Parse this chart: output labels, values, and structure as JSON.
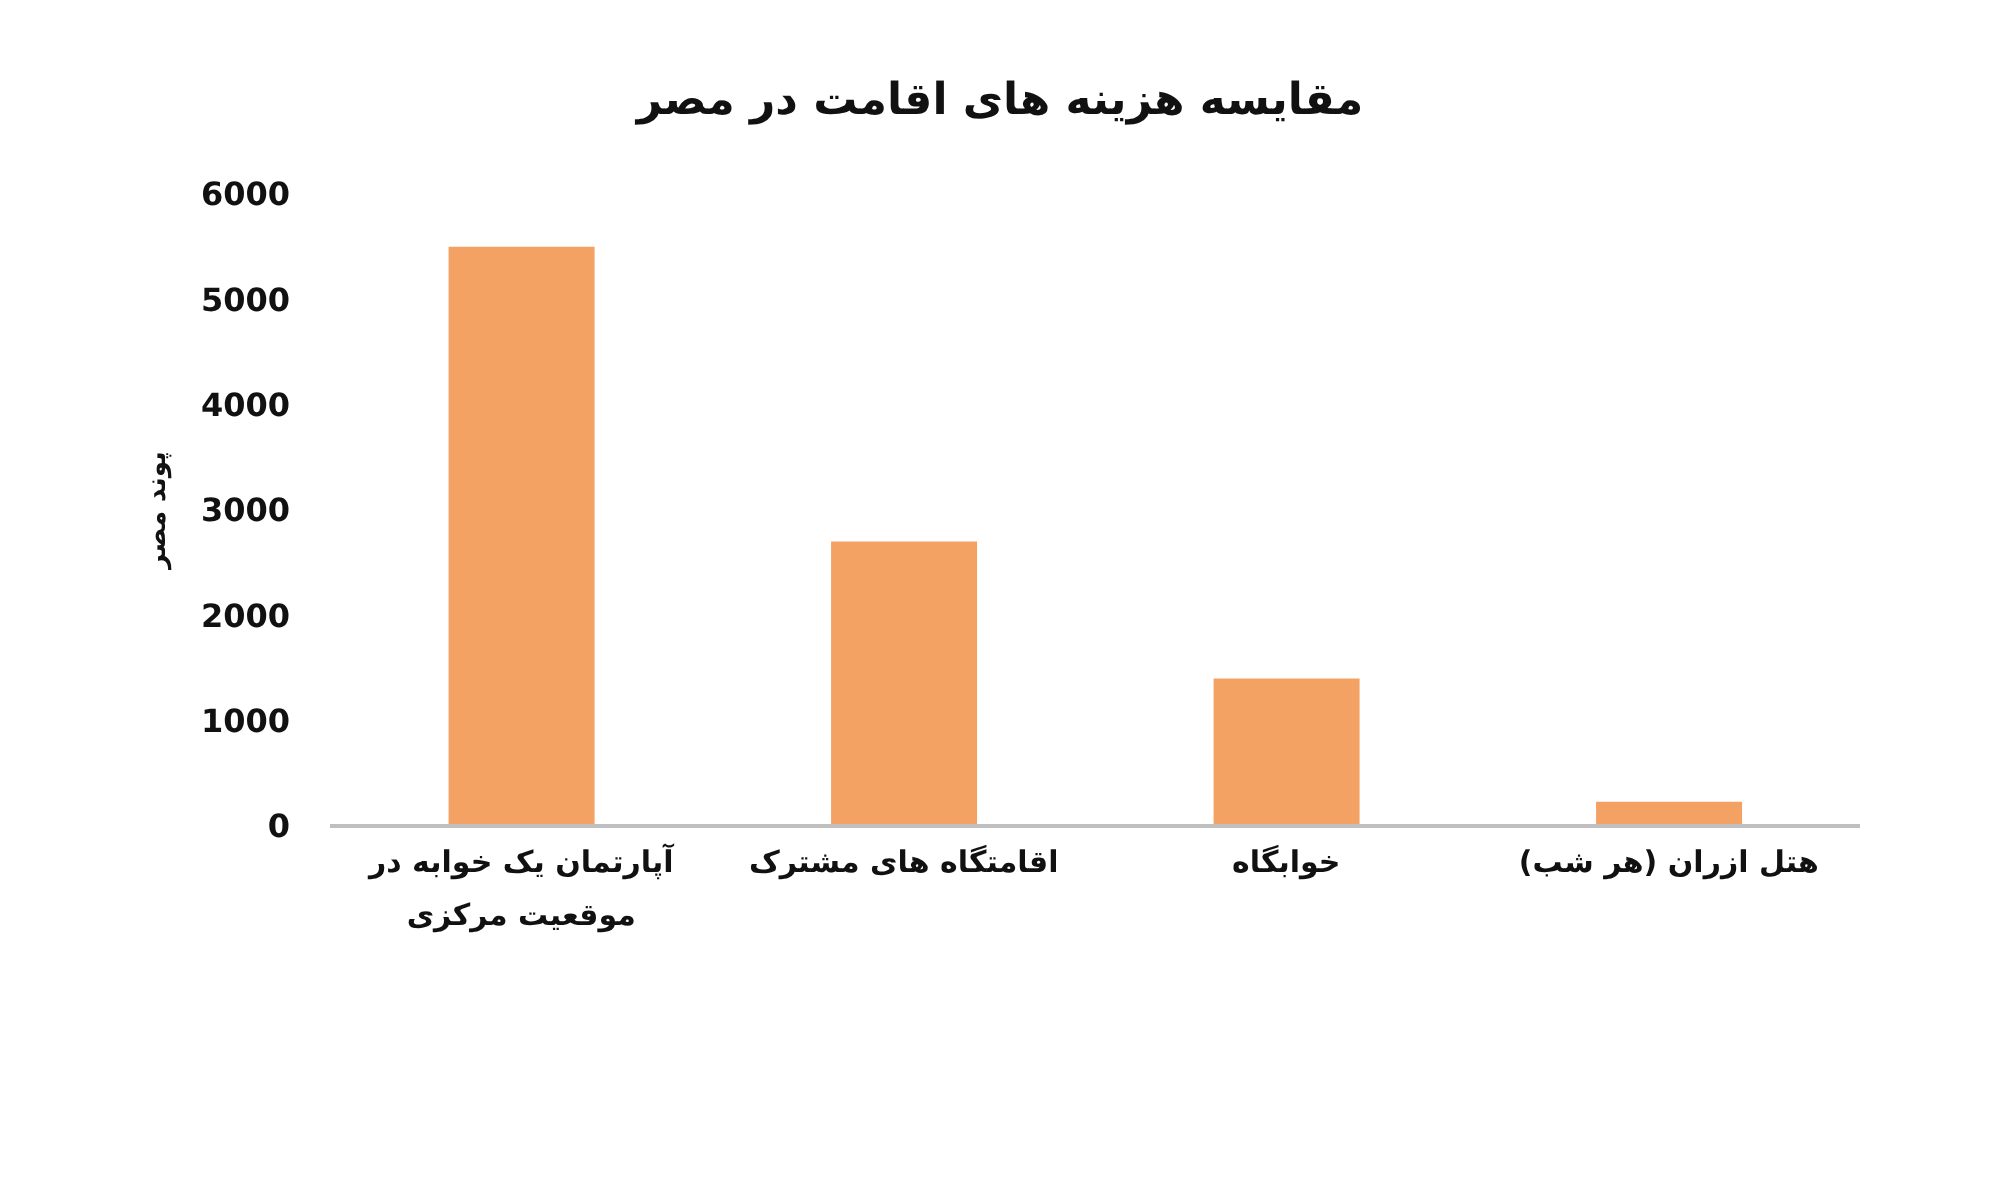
{
  "chart_data": {
    "type": "bar",
    "title": "مقایسه هزینه های اقامت در مصر",
    "ylabel": "پوند مصر",
    "categories": [
      "آپارتمان یک خوابه در موقعیت مرکزی",
      "اقامتگاه های مشترک",
      "خوابگاه",
      "هتل ازران (هر شب)"
    ],
    "values": [
      5500,
      2700,
      1400,
      230
    ],
    "color": "#f4a264",
    "ylim": [
      0,
      6000
    ],
    "yticks": [
      0,
      1000,
      2000,
      3000,
      4000,
      5000,
      6000
    ]
  }
}
